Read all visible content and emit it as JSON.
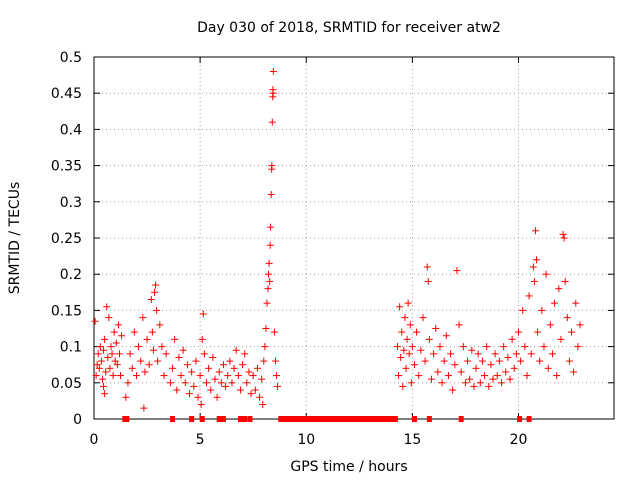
{
  "chart_data": {
    "type": "scatter",
    "title": "Day 030 of 2018, SRMTID for receiver atw2",
    "xlabel": "GPS time / hours",
    "ylabel": "SRMTID / TECUs",
    "xlim": [
      0,
      24.5
    ],
    "ylim": [
      0,
      0.5
    ],
    "xticks": [
      0,
      5,
      10,
      15,
      20
    ],
    "xtick_labels": [
      "0",
      "5",
      "10",
      "15",
      "20"
    ],
    "yticks": [
      0,
      0.05,
      0.1,
      0.15,
      0.2,
      0.25,
      0.3,
      0.35,
      0.4,
      0.45,
      0.5
    ],
    "ytick_labels": [
      "0",
      "0.05",
      "0.1",
      "0.15",
      "0.2",
      "0.25",
      "0.3",
      "0.35",
      "0.4",
      "0.45",
      "0.5"
    ],
    "grid": true,
    "marker": "+",
    "series": [
      {
        "name": "SRMTID",
        "color": "#ff0000",
        "points": [
          [
            0.05,
            0.135
          ],
          [
            0.1,
            0.06
          ],
          [
            0.15,
            0.075
          ],
          [
            0.2,
            0.09
          ],
          [
            0.25,
            0.07
          ],
          [
            0.3,
            0.1
          ],
          [
            0.35,
            0.08
          ],
          [
            0.4,
            0.055
          ],
          [
            0.45,
            0.095
          ],
          [
            0.5,
            0.11
          ],
          [
            0.55,
            0.065
          ],
          [
            0.6,
            0.155
          ],
          [
            0.65,
            0.085
          ],
          [
            0.7,
            0.14
          ],
          [
            0.75,
            0.07
          ],
          [
            0.8,
            0.1
          ],
          [
            0.85,
            0.09
          ],
          [
            0.9,
            0.06
          ],
          [
            0.95,
            0.12
          ],
          [
            1.0,
            0.08
          ],
          [
            1.05,
            0.105
          ],
          [
            1.1,
            0.075
          ],
          [
            1.15,
            0.13
          ],
          [
            1.2,
            0.09
          ],
          [
            1.25,
            0.06
          ],
          [
            1.3,
            0.115
          ],
          [
            0.45,
            0.045
          ],
          [
            0.5,
            0.035
          ],
          [
            1.5,
            0.03
          ],
          [
            1.6,
            0.05
          ],
          [
            1.7,
            0.09
          ],
          [
            1.8,
            0.07
          ],
          [
            1.9,
            0.12
          ],
          [
            2.0,
            0.06
          ],
          [
            2.1,
            0.1
          ],
          [
            2.2,
            0.08
          ],
          [
            2.3,
            0.14
          ],
          [
            2.35,
            0.015
          ],
          [
            2.4,
            0.065
          ],
          [
            2.5,
            0.11
          ],
          [
            2.6,
            0.075
          ],
          [
            2.7,
            0.165
          ],
          [
            2.75,
            0.12
          ],
          [
            2.8,
            0.095
          ],
          [
            2.85,
            0.175
          ],
          [
            2.9,
            0.185
          ],
          [
            2.95,
            0.15
          ],
          [
            3.0,
            0.08
          ],
          [
            3.1,
            0.13
          ],
          [
            3.2,
            0.1
          ],
          [
            3.3,
            0.06
          ],
          [
            3.4,
            0.09
          ],
          [
            3.6,
            0.05
          ],
          [
            3.7,
            0.07
          ],
          [
            3.8,
            0.11
          ],
          [
            3.9,
            0.04
          ],
          [
            4.0,
            0.085
          ],
          [
            4.1,
            0.06
          ],
          [
            4.2,
            0.095
          ],
          [
            4.3,
            0.05
          ],
          [
            4.4,
            0.075
          ],
          [
            4.5,
            0.035
          ],
          [
            4.6,
            0.065
          ],
          [
            4.7,
            0.045
          ],
          [
            4.8,
            0.08
          ],
          [
            4.9,
            0.03
          ],
          [
            5.0,
            0.06
          ],
          [
            5.05,
            0.02
          ],
          [
            5.1,
            0.11
          ],
          [
            5.15,
            0.145
          ],
          [
            5.2,
            0.09
          ],
          [
            5.3,
            0.05
          ],
          [
            5.4,
            0.07
          ],
          [
            5.5,
            0.04
          ],
          [
            5.6,
            0.085
          ],
          [
            5.7,
            0.055
          ],
          [
            5.8,
            0.03
          ],
          [
            5.9,
            0.065
          ],
          [
            6.0,
            0.05
          ],
          [
            6.1,
            0.075
          ],
          [
            6.2,
            0.045
          ],
          [
            6.3,
            0.06
          ],
          [
            6.4,
            0.08
          ],
          [
            6.5,
            0.05
          ],
          [
            6.6,
            0.07
          ],
          [
            6.7,
            0.095
          ],
          [
            6.8,
            0.06
          ],
          [
            6.9,
            0.04
          ],
          [
            7.0,
            0.075
          ],
          [
            7.1,
            0.09
          ],
          [
            7.2,
            0.05
          ],
          [
            7.3,
            0.065
          ],
          [
            7.4,
            0.035
          ],
          [
            7.5,
            0.06
          ],
          [
            7.6,
            0.04
          ],
          [
            7.7,
            0.07
          ],
          [
            7.8,
            0.03
          ],
          [
            7.9,
            0.055
          ],
          [
            7.95,
            0.02
          ],
          [
            8.0,
            0.08
          ],
          [
            8.05,
            0.1
          ],
          [
            8.1,
            0.125
          ],
          [
            8.15,
            0.16
          ],
          [
            8.2,
            0.18
          ],
          [
            8.22,
            0.2
          ],
          [
            8.25,
            0.215
          ],
          [
            8.28,
            0.19
          ],
          [
            8.3,
            0.24
          ],
          [
            8.32,
            0.265
          ],
          [
            8.35,
            0.31
          ],
          [
            8.37,
            0.345
          ],
          [
            8.38,
            0.35
          ],
          [
            8.4,
            0.41
          ],
          [
            8.42,
            0.445
          ],
          [
            8.43,
            0.455
          ],
          [
            8.44,
            0.45
          ],
          [
            8.45,
            0.48
          ],
          [
            8.5,
            0.12
          ],
          [
            8.55,
            0.08
          ],
          [
            8.6,
            0.06
          ],
          [
            8.65,
            0.045
          ],
          [
            14.3,
            0.1
          ],
          [
            14.35,
            0.06
          ],
          [
            14.4,
            0.155
          ],
          [
            14.45,
            0.085
          ],
          [
            14.5,
            0.12
          ],
          [
            14.55,
            0.045
          ],
          [
            14.6,
            0.095
          ],
          [
            14.65,
            0.14
          ],
          [
            14.7,
            0.07
          ],
          [
            14.75,
            0.11
          ],
          [
            14.8,
            0.16
          ],
          [
            14.85,
            0.09
          ],
          [
            14.9,
            0.13
          ],
          [
            14.95,
            0.05
          ],
          [
            15.0,
            0.1
          ],
          [
            15.1,
            0.075
          ],
          [
            15.2,
            0.12
          ],
          [
            15.3,
            0.06
          ],
          [
            15.4,
            0.095
          ],
          [
            15.5,
            0.14
          ],
          [
            15.6,
            0.08
          ],
          [
            15.7,
            0.21
          ],
          [
            15.75,
            0.19
          ],
          [
            15.8,
            0.11
          ],
          [
            15.9,
            0.055
          ],
          [
            16.0,
            0.09
          ],
          [
            16.1,
            0.125
          ],
          [
            16.2,
            0.065
          ],
          [
            16.3,
            0.1
          ],
          [
            16.4,
            0.05
          ],
          [
            16.5,
            0.08
          ],
          [
            16.6,
            0.115
          ],
          [
            16.7,
            0.06
          ],
          [
            16.8,
            0.09
          ],
          [
            16.9,
            0.04
          ],
          [
            17.0,
            0.075
          ],
          [
            17.1,
            0.205
          ],
          [
            17.2,
            0.13
          ],
          [
            17.3,
            0.065
          ],
          [
            17.4,
            0.1
          ],
          [
            17.5,
            0.05
          ],
          [
            17.6,
            0.08
          ],
          [
            17.7,
            0.055
          ],
          [
            17.8,
            0.095
          ],
          [
            17.9,
            0.045
          ],
          [
            18.0,
            0.07
          ],
          [
            18.1,
            0.09
          ],
          [
            18.2,
            0.05
          ],
          [
            18.3,
            0.08
          ],
          [
            18.4,
            0.06
          ],
          [
            18.5,
            0.1
          ],
          [
            18.6,
            0.045
          ],
          [
            18.7,
            0.075
          ],
          [
            18.8,
            0.055
          ],
          [
            18.9,
            0.09
          ],
          [
            19.0,
            0.06
          ],
          [
            19.1,
            0.08
          ],
          [
            19.2,
            0.05
          ],
          [
            19.3,
            0.1
          ],
          [
            19.4,
            0.065
          ],
          [
            19.5,
            0.085
          ],
          [
            19.6,
            0.055
          ],
          [
            19.7,
            0.11
          ],
          [
            19.8,
            0.07
          ],
          [
            19.9,
            0.09
          ],
          [
            20.0,
            0.12
          ],
          [
            20.1,
            0.08
          ],
          [
            20.2,
            0.15
          ],
          [
            20.3,
            0.1
          ],
          [
            20.4,
            0.06
          ],
          [
            20.5,
            0.17
          ],
          [
            20.6,
            0.09
          ],
          [
            20.7,
            0.21
          ],
          [
            20.75,
            0.19
          ],
          [
            20.8,
            0.26
          ],
          [
            20.85,
            0.22
          ],
          [
            20.9,
            0.12
          ],
          [
            21.0,
            0.08
          ],
          [
            21.1,
            0.15
          ],
          [
            21.2,
            0.1
          ],
          [
            21.3,
            0.2
          ],
          [
            21.4,
            0.07
          ],
          [
            21.5,
            0.13
          ],
          [
            21.6,
            0.09
          ],
          [
            21.7,
            0.16
          ],
          [
            21.8,
            0.06
          ],
          [
            21.9,
            0.18
          ],
          [
            22.0,
            0.11
          ],
          [
            22.1,
            0.255
          ],
          [
            22.15,
            0.25
          ],
          [
            22.2,
            0.19
          ],
          [
            22.3,
            0.14
          ],
          [
            22.4,
            0.08
          ],
          [
            22.5,
            0.12
          ],
          [
            22.6,
            0.065
          ],
          [
            22.7,
            0.16
          ],
          [
            22.8,
            0.1
          ],
          [
            22.9,
            0.13
          ]
        ]
      }
    ],
    "zero_points": [
      1.45,
      1.55,
      3.7,
      4.6,
      5.1,
      5.9,
      6.1,
      6.9,
      7.1,
      7.35,
      8.8,
      9.0,
      9.15,
      9.3,
      9.45,
      9.6,
      9.75,
      9.9,
      10.05,
      10.2,
      10.35,
      10.5,
      10.65,
      10.8,
      10.95,
      11.1,
      11.25,
      11.4,
      11.55,
      11.7,
      11.85,
      12.0,
      12.15,
      12.3,
      12.45,
      12.6,
      12.75,
      12.9,
      13.05,
      13.2,
      13.35,
      13.5,
      13.65,
      13.8,
      13.95,
      14.1,
      14.2,
      15.1,
      15.8,
      17.3,
      20.05,
      20.5
    ]
  }
}
